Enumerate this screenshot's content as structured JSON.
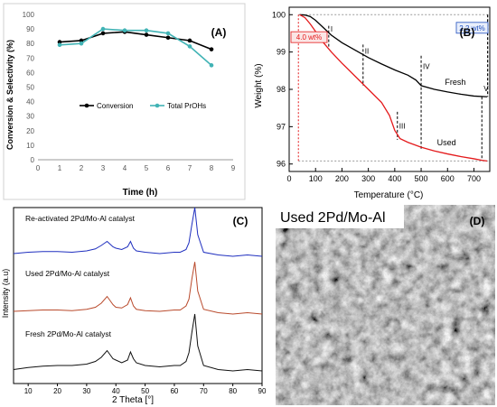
{
  "colors": {
    "conversion": "#000000",
    "propanols": "#41b3b5",
    "fresh_tga": "#000000",
    "used_tga": "#e41a1c",
    "xrd_reactivated": "#1f2fbf",
    "xrd_used": "#b94a2c",
    "xrd_fresh": "#111111",
    "sem_base": "#8a8a8a"
  },
  "chart_data": [
    {
      "panel_label": "(A)",
      "type": "line",
      "xlabel": "Time (h)",
      "ylabel": "Conversion & Selectivity (%)",
      "xlim": [
        0,
        9
      ],
      "ylim": [
        0,
        100
      ],
      "xticks": [
        "0",
        "1",
        "2",
        "3",
        "4",
        "5",
        "6",
        "7",
        "8",
        "9"
      ],
      "yticks": [
        "0",
        "10",
        "20",
        "30",
        "40",
        "50",
        "60",
        "70",
        "80",
        "90",
        "100"
      ],
      "grid": false,
      "legend": "center",
      "x": [
        1,
        2,
        3,
        4,
        5,
        6,
        7,
        8
      ],
      "series": [
        {
          "name": "Conversion",
          "values": [
            81,
            82,
            87,
            88,
            86,
            84,
            82,
            76
          ]
        },
        {
          "name": "Total PrOHs",
          "values": [
            79,
            80,
            90,
            89,
            89,
            87,
            78,
            65
          ]
        }
      ]
    },
    {
      "panel_label": "(B)",
      "type": "line",
      "xlabel": "Temperature (°C)",
      "ylabel": "Weight (%)",
      "xlim": [
        0,
        760
      ],
      "ylim": [
        95.8,
        100.2
      ],
      "xticks": [
        "0",
        "100",
        "200",
        "300",
        "400",
        "500",
        "600",
        "700"
      ],
      "yticks": [
        "96",
        "97",
        "98",
        "99",
        "100"
      ],
      "grid": false,
      "series": [
        {
          "name": "Fresh",
          "x": [
            40,
            60,
            80,
            100,
            130,
            160,
            200,
            250,
            300,
            350,
            400,
            450,
            480,
            500,
            550,
            600,
            650,
            700,
            750
          ],
          "values": [
            100,
            99.99,
            99.95,
            99.85,
            99.65,
            99.45,
            99.25,
            99.05,
            98.85,
            98.68,
            98.52,
            98.38,
            98.25,
            98.1,
            98.0,
            97.93,
            97.87,
            97.82,
            97.8
          ]
        },
        {
          "name": "Used",
          "x": [
            40,
            60,
            80,
            100,
            130,
            160,
            200,
            250,
            300,
            350,
            380,
            400,
            420,
            450,
            500,
            550,
            600,
            650,
            700,
            730,
            750
          ],
          "values": [
            100,
            99.92,
            99.75,
            99.55,
            99.25,
            99.0,
            98.7,
            98.35,
            98.0,
            97.65,
            97.3,
            96.9,
            96.68,
            96.58,
            96.45,
            96.35,
            96.27,
            96.2,
            96.14,
            96.1,
            96.08
          ]
        }
      ],
      "annotations": [
        {
          "text": "I",
          "x": 150
        },
        {
          "text": "II",
          "x": 280
        },
        {
          "text": "III",
          "x": 410
        },
        {
          "text": "IV",
          "x": 500
        },
        {
          "text": "V",
          "x": 730
        }
      ],
      "boxes": [
        {
          "text": "4.0 wt%",
          "color": "#e41a1c"
        },
        {
          "text": "2.2 wt%",
          "color": "#1f4fbf"
        }
      ]
    },
    {
      "panel_label": "(C)",
      "type": "line",
      "xlabel": "2 Theta [°]",
      "ylabel": "Intensity (a.u)",
      "xlim": [
        5,
        90
      ],
      "xticks": [
        "10",
        "20",
        "30",
        "40",
        "50",
        "60",
        "70",
        "80",
        "90"
      ],
      "grid": false,
      "x": [
        5,
        10,
        15,
        20,
        25,
        30,
        33,
        35,
        37,
        38,
        39,
        40,
        42,
        44,
        45,
        46,
        47,
        50,
        55,
        60,
        62,
        64,
        65,
        66,
        67,
        68,
        70,
        75,
        80,
        85,
        90
      ],
      "series": [
        {
          "name": "Re-activated 2Pd/Mo-Al catalyst",
          "values": [
            12,
            14,
            15,
            15,
            14,
            16,
            19,
            24,
            30,
            26,
            22,
            20,
            18,
            22,
            30,
            20,
            16,
            14,
            12,
            14,
            14,
            18,
            28,
            55,
            80,
            40,
            14,
            10,
            8,
            10,
            8
          ]
        },
        {
          "name": "Used 2Pd/Mo-Al catalyst",
          "values": [
            12,
            13,
            14,
            14,
            13,
            15,
            18,
            24,
            34,
            28,
            22,
            18,
            17,
            22,
            32,
            20,
            15,
            13,
            12,
            14,
            14,
            20,
            30,
            60,
            85,
            42,
            15,
            10,
            8,
            10,
            8
          ]
        },
        {
          "name": "Fresh 2Pd/Mo-Al catalyst",
          "values": [
            10,
            13,
            15,
            16,
            16,
            18,
            22,
            28,
            38,
            32,
            26,
            24,
            20,
            24,
            36,
            26,
            20,
            16,
            14,
            16,
            16,
            22,
            35,
            65,
            92,
            45,
            16,
            10,
            8,
            10,
            8
          ]
        }
      ]
    },
    {
      "panel_label": "(D)",
      "type": "image",
      "caption": "Used 2Pd/Mo-Al"
    }
  ]
}
